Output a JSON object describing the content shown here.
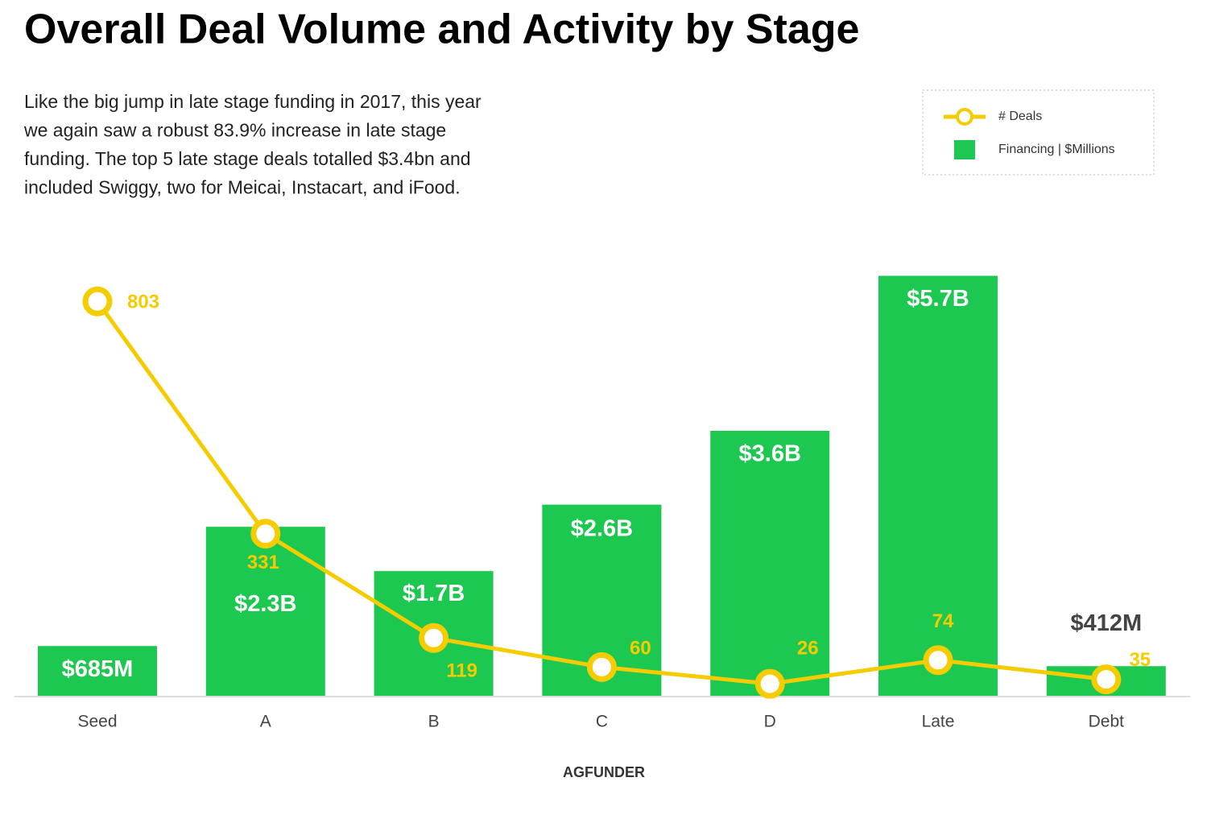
{
  "chart_data": {
    "type": "bar-line",
    "title": "Overall Deal Volume and Activity by Stage",
    "subtitle": [
      "Like the big jump in late stage funding in 2017, this year",
      "we again saw a robust 83.9% increase in late stage",
      "funding. The top 5 late stage deals totalled $3.4bn and",
      "included Swiggy, two for Meicai, Instacart, and iFood."
    ],
    "categories": [
      "Seed",
      "A",
      "B",
      "C",
      "D",
      "Late",
      "Debt"
    ],
    "series": [
      {
        "name": "Financing | $Millions",
        "type": "bar",
        "color": "#1dc850",
        "values": [
          685,
          2300,
          1700,
          2600,
          3600,
          5700,
          412
        ],
        "value_labels": [
          "$685M",
          "$2.3B",
          "$1.7B",
          "$2.6B",
          "$3.6B",
          "$5.7B",
          "$412M"
        ]
      },
      {
        "name": "# Deals",
        "type": "line",
        "axis": "y2",
        "color": "#f5cc00",
        "values": [
          803,
          331,
          119,
          60,
          26,
          74,
          35
        ]
      }
    ],
    "ylim": [
      0,
      6000
    ],
    "y2lim": [
      0,
      900
    ],
    "legend": "top-right",
    "logo": "AGFUNDER"
  }
}
